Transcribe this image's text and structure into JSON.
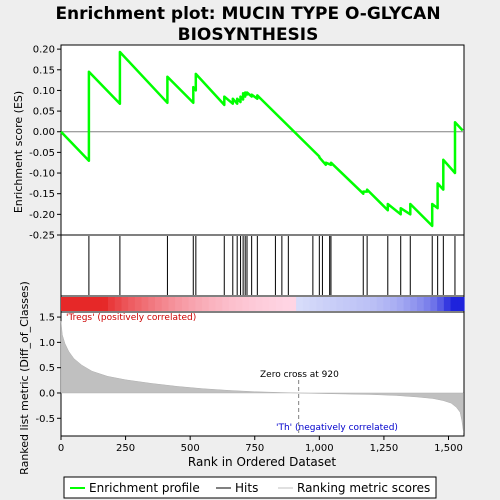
{
  "title_line1": "Enrichment plot: MUCIN TYPE O-GLYCAN",
  "title_line2": "BIOSYNTHESIS",
  "chart_data": {
    "type": "line",
    "x_axis_label": "Rank in Ordered Dataset",
    "x_ticks": [
      0,
      250,
      500,
      750,
      1000,
      1250,
      1500
    ],
    "x_tick_labels": [
      "0",
      "250",
      "500",
      "750",
      "1,000",
      "1,250",
      "1,500"
    ],
    "x_max": 1560,
    "es_panel": {
      "ylabel": "Enrichment score (ES)",
      "yticks": [
        0.2,
        0.15,
        0.1,
        0.05,
        0.0,
        -0.05,
        -0.1,
        -0.15,
        -0.2,
        -0.25
      ],
      "ytick_labels": [
        "0.20",
        "0.15",
        "0.10",
        "0.05",
        "0.00",
        "-0.05",
        "-0.10",
        "-0.15",
        "-0.20",
        "-0.25"
      ],
      "ylim": [
        -0.25,
        0.21
      ],
      "series": [
        {
          "x": [
            0,
            108,
            108,
            228,
            228,
            412,
            412,
            512,
            512,
            522,
            522,
            632,
            632,
            665,
            665,
            682,
            682,
            695,
            695,
            705,
            705,
            713,
            713,
            720,
            720,
            738,
            738,
            760,
            760,
            1000,
            1000,
            1025,
            1025,
            1045,
            1045,
            1170,
            1170,
            1185,
            1185,
            1265,
            1265,
            1315,
            1315,
            1352,
            1352,
            1437,
            1437,
            1458,
            1458,
            1480,
            1480,
            1525,
            1525,
            1555
          ],
          "y": [
            0.0,
            -0.07,
            0.145,
            0.068,
            0.193,
            0.07,
            0.133,
            0.07,
            0.108,
            0.1,
            0.14,
            0.065,
            0.085,
            0.068,
            0.08,
            0.068,
            0.08,
            0.072,
            0.085,
            0.078,
            0.093,
            0.085,
            0.095,
            0.09,
            0.095,
            0.085,
            0.09,
            0.08,
            0.088,
            -0.06,
            -0.062,
            -0.08,
            -0.075,
            -0.08,
            -0.075,
            -0.15,
            -0.145,
            -0.145,
            -0.14,
            -0.19,
            -0.175,
            -0.2,
            -0.185,
            -0.2,
            -0.175,
            -0.228,
            -0.175,
            -0.185,
            -0.125,
            -0.14,
            -0.068,
            -0.1,
            0.023,
            0.003
          ]
        }
      ]
    },
    "hits": [
      108,
      228,
      412,
      512,
      522,
      632,
      665,
      682,
      695,
      705,
      713,
      720,
      738,
      760,
      830,
      855,
      880,
      975,
      1000,
      1012,
      1040,
      1045,
      1170,
      1185,
      1265,
      1315,
      1352,
      1437,
      1458,
      1480,
      1525
    ],
    "metric_panel": {
      "ylabel": "Ranked list metric (Diff_of_Classes)",
      "yticks": [
        1.5,
        1.0,
        0.5,
        0.0,
        -0.5
      ],
      "ytick_labels": [
        "1.5",
        "1.0",
        "0.5",
        "0.0",
        "-0.5"
      ],
      "ylim": [
        -0.85,
        1.6
      ],
      "curve_x": [
        0,
        5,
        15,
        30,
        50,
        80,
        120,
        180,
        250,
        350,
        450,
        550,
        650,
        750,
        850,
        920,
        1000,
        1100,
        1200,
        1300,
        1380,
        1440,
        1480,
        1510,
        1530,
        1545,
        1552,
        1558
      ],
      "curve_y": [
        1.42,
        1.15,
        0.98,
        0.82,
        0.68,
        0.55,
        0.43,
        0.33,
        0.26,
        0.19,
        0.13,
        0.085,
        0.05,
        0.025,
        0.01,
        0.0,
        -0.01,
        -0.02,
        -0.03,
        -0.05,
        -0.08,
        -0.11,
        -0.15,
        -0.2,
        -0.28,
        -0.38,
        -0.55,
        -0.78
      ],
      "pos_label": "'Tregs' (positively correlated)",
      "neg_label": "'Th' (negatively correlated)",
      "zero_cross_text": "Zero cross at 920",
      "zero_cross": 920
    },
    "legend": [
      {
        "label": "Enrichment profile",
        "color": "#00ff00"
      },
      {
        "label": "Hits",
        "color": "#000000"
      },
      {
        "label": "Ranking metric scores",
        "color": "#c0c0c0"
      }
    ]
  }
}
